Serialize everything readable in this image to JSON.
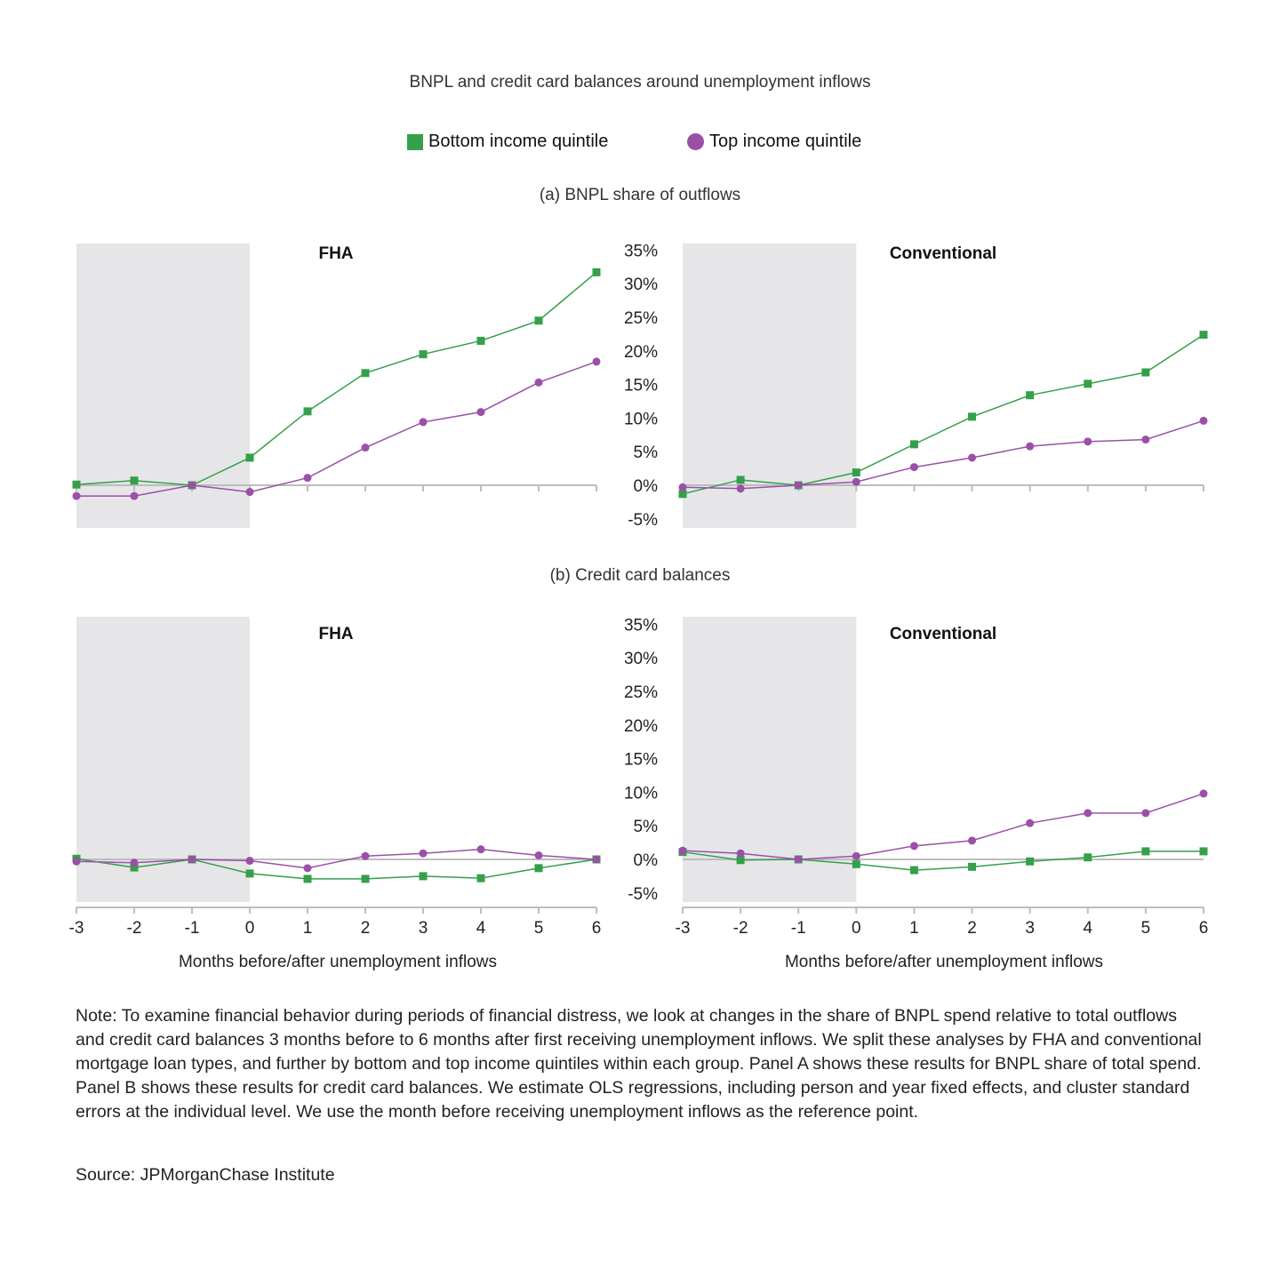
{
  "title": "BNPL and credit card balances around unemployment inflows",
  "legend": [
    {
      "label": "Bottom income quintile",
      "marker": "square",
      "color": "#34a04a"
    },
    {
      "label": "Top income quintile",
      "marker": "circle",
      "color": "#9b50a8"
    }
  ],
  "panel_titles": {
    "a": "(a) BNPL share of outflows",
    "b": "(b) Credit card balances"
  },
  "note": "Note: To examine financial behavior during periods of financial distress, we look at changes in the share of BNPL spend relative to total outflows and credit card balances 3 months before to 6 months after first receiving unemployment inflows. We split these analyses by FHA and conventional mortgage loan types, and further by bottom and top income quintiles within each group. Panel A shows these results for BNPL share of total spend. Panel B shows these results for credit card balances. We estimate OLS regressions, including person and year fixed effects, and cluster standard errors at the individual level. We use the month before receiving unemployment inflows as the reference point.",
  "source": "Source: JPMorganChase Institute",
  "chart_data": [
    {
      "type": "line",
      "panel": "a",
      "title": "FHA",
      "xlabel": "",
      "ylabel": "",
      "x": [
        -3,
        -2,
        -1,
        0,
        1,
        2,
        3,
        4,
        5,
        6
      ],
      "ylim": [
        -5,
        35
      ],
      "shaded_region": [
        -3,
        0
      ],
      "series": [
        {
          "name": "Bottom income quintile",
          "values": [
            0.1,
            0.7,
            0.0,
            4.1,
            11.0,
            16.7,
            19.5,
            21.5,
            24.5,
            31.7
          ]
        },
        {
          "name": "Top income quintile",
          "values": [
            -1.6,
            -1.6,
            0.0,
            -1.0,
            1.1,
            5.6,
            9.4,
            10.9,
            15.3,
            18.4
          ]
        }
      ]
    },
    {
      "type": "line",
      "panel": "a",
      "title": "Conventional",
      "xlabel": "",
      "ylabel": "",
      "x": [
        -3,
        -2,
        -1,
        0,
        1,
        2,
        3,
        4,
        5,
        6
      ],
      "ylim": [
        -5,
        35
      ],
      "yticks": [
        "35%",
        "30%",
        "25%",
        "20%",
        "15%",
        "10%",
        "5%",
        "0%",
        "-5%"
      ],
      "shaded_region": [
        -3,
        0
      ],
      "series": [
        {
          "name": "Bottom income quintile",
          "values": [
            -1.3,
            0.8,
            0.0,
            1.9,
            6.1,
            10.2,
            13.4,
            15.1,
            16.8,
            22.4
          ]
        },
        {
          "name": "Top income quintile",
          "values": [
            -0.3,
            -0.5,
            0.0,
            0.5,
            2.7,
            4.1,
            5.8,
            6.5,
            6.8,
            9.6
          ]
        }
      ]
    },
    {
      "type": "line",
      "panel": "b",
      "title": "FHA",
      "xlabel": "Months before/after unemployment inflows",
      "ylabel": "",
      "x": [
        -3,
        -2,
        -1,
        0,
        1,
        2,
        3,
        4,
        5,
        6
      ],
      "xticks": [
        "-3",
        "-2",
        "-1",
        "0",
        "1",
        "2",
        "3",
        "4",
        "5",
        "6"
      ],
      "ylim": [
        -5,
        35
      ],
      "shaded_region": [
        -3,
        0
      ],
      "series": [
        {
          "name": "Bottom income quintile",
          "values": [
            0.1,
            -1.2,
            0.0,
            -2.1,
            -2.9,
            -2.9,
            -2.5,
            -2.8,
            -1.3,
            0.0
          ]
        },
        {
          "name": "Top income quintile",
          "values": [
            -0.3,
            -0.5,
            0.0,
            -0.2,
            -1.3,
            0.5,
            0.9,
            1.5,
            0.6,
            0.0
          ]
        }
      ]
    },
    {
      "type": "line",
      "panel": "b",
      "title": "Conventional",
      "xlabel": "Months before/after unemployment inflows",
      "ylabel": "",
      "x": [
        -3,
        -2,
        -1,
        0,
        1,
        2,
        3,
        4,
        5,
        6
      ],
      "xticks": [
        "-3",
        "-2",
        "-1",
        "0",
        "1",
        "2",
        "3",
        "4",
        "5",
        "6"
      ],
      "ylim": [
        -5,
        35
      ],
      "yticks": [
        "35%",
        "30%",
        "25%",
        "20%",
        "15%",
        "10%",
        "5%",
        "0%",
        "-5%"
      ],
      "shaded_region": [
        -3,
        0
      ],
      "series": [
        {
          "name": "Bottom income quintile",
          "values": [
            1.1,
            -0.1,
            0.0,
            -0.7,
            -1.6,
            -1.1,
            -0.3,
            0.3,
            1.2,
            1.2
          ]
        },
        {
          "name": "Top income quintile",
          "values": [
            1.3,
            0.9,
            0.0,
            0.5,
            2.0,
            2.8,
            5.4,
            6.9,
            6.9,
            9.8
          ]
        }
      ]
    }
  ]
}
